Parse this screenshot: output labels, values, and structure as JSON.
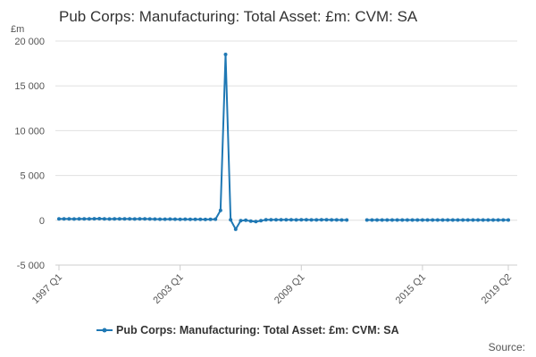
{
  "chart_data": {
    "type": "line",
    "title": "Pub Corps: Manufacturing: Total Asset: £m: CVM: SA",
    "y_unit": "£m",
    "source": "Source:",
    "categories": [
      "1997 Q1",
      null,
      null,
      null,
      null,
      null,
      null,
      null,
      null,
      null,
      null,
      null,
      null,
      null,
      null,
      null,
      null,
      null,
      null,
      null,
      null,
      null,
      null,
      null,
      "2003 Q1",
      null,
      null,
      null,
      null,
      null,
      null,
      null,
      null,
      null,
      null,
      null,
      null,
      null,
      null,
      null,
      null,
      null,
      null,
      null,
      null,
      null,
      null,
      null,
      "2009 Q1",
      null,
      null,
      null,
      null,
      null,
      null,
      null,
      null,
      null,
      null,
      null,
      null,
      null,
      null,
      null,
      null,
      null,
      null,
      null,
      null,
      null,
      null,
      null,
      "2015 Q1",
      null,
      null,
      null,
      null,
      null,
      null,
      null,
      null,
      null,
      null,
      null,
      null,
      null,
      null,
      null,
      null,
      "2019 Q2"
    ],
    "series": [
      {
        "name": "Pub Corps: Manufacturing: Total Asset: £m: CVM: SA",
        "color": "#1f78b4",
        "values": [
          150,
          160,
          150,
          140,
          150,
          160,
          150,
          170,
          180,
          150,
          140,
          150,
          150,
          160,
          150,
          140,
          150,
          160,
          140,
          130,
          120,
          120,
          130,
          120,
          110,
          120,
          110,
          100,
          100,
          90,
          100,
          120,
          1100,
          18500,
          50,
          -1000,
          -50,
          0,
          -100,
          -150,
          -50,
          50,
          60,
          60,
          50,
          50,
          50,
          40,
          50,
          50,
          40,
          40,
          50,
          50,
          40,
          40,
          30,
          30,
          null,
          null,
          null,
          30,
          30,
          30,
          30,
          30,
          30,
          30,
          30,
          30,
          30,
          30,
          30,
          30,
          30,
          30,
          30,
          30,
          30,
          30,
          30,
          30,
          30,
          30,
          30,
          30,
          30,
          30,
          30,
          30
        ]
      }
    ],
    "ylim": [
      -5000,
      20000
    ],
    "yticks": [
      {
        "value": -5000,
        "label": "-5 000"
      },
      0,
      {
        "value": 5000,
        "label": "5 000"
      },
      {
        "value": 10000,
        "label": "10 000"
      },
      {
        "value": 15000,
        "label": "15 000"
      },
      {
        "value": 20000,
        "label": "20 000"
      }
    ],
    "grid": true
  }
}
